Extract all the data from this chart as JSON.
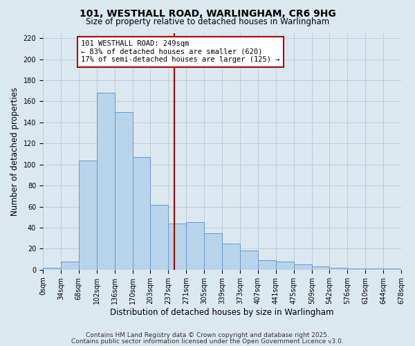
{
  "title1": "101, WESTHALL ROAD, WARLINGHAM, CR6 9HG",
  "title2": "Size of property relative to detached houses in Warlingham",
  "xlabel": "Distribution of detached houses by size in Warlingham",
  "ylabel": "Number of detached properties",
  "bin_edges": [
    0,
    34,
    68,
    102,
    136,
    170,
    203,
    237,
    271,
    305,
    339,
    373,
    407,
    441,
    475,
    509,
    542,
    576,
    610,
    644,
    678
  ],
  "bar_heights": [
    2,
    8,
    104,
    168,
    150,
    107,
    62,
    44,
    45,
    35,
    25,
    18,
    9,
    8,
    5,
    3,
    2,
    1,
    1,
    1
  ],
  "bar_facecolor": "#b8d4ea",
  "bar_edgecolor": "#6699cc",
  "bg_color": "#dce8f0",
  "grid_color": "#b8c8d8",
  "vline_x": 249,
  "vline_color": "#aa0000",
  "annotation_title": "101 WESTHALL ROAD: 249sqm",
  "annotation_line2": "← 83% of detached houses are smaller (620)",
  "annotation_line3": "17% of semi-detached houses are larger (125) →",
  "annotation_box_color": "#aa0000",
  "ylim": [
    0,
    225
  ],
  "yticks": [
    0,
    20,
    40,
    60,
    80,
    100,
    120,
    140,
    160,
    180,
    200,
    220
  ],
  "footer1": "Contains HM Land Registry data © Crown copyright and database right 2025.",
  "footer2": "Contains public sector information licensed under the Open Government Licence v3.0.",
  "title_fontsize": 10,
  "subtitle_fontsize": 8.5,
  "axis_label_fontsize": 8.5,
  "tick_fontsize": 7,
  "annotation_fontsize": 7.5,
  "footer_fontsize": 6.5
}
